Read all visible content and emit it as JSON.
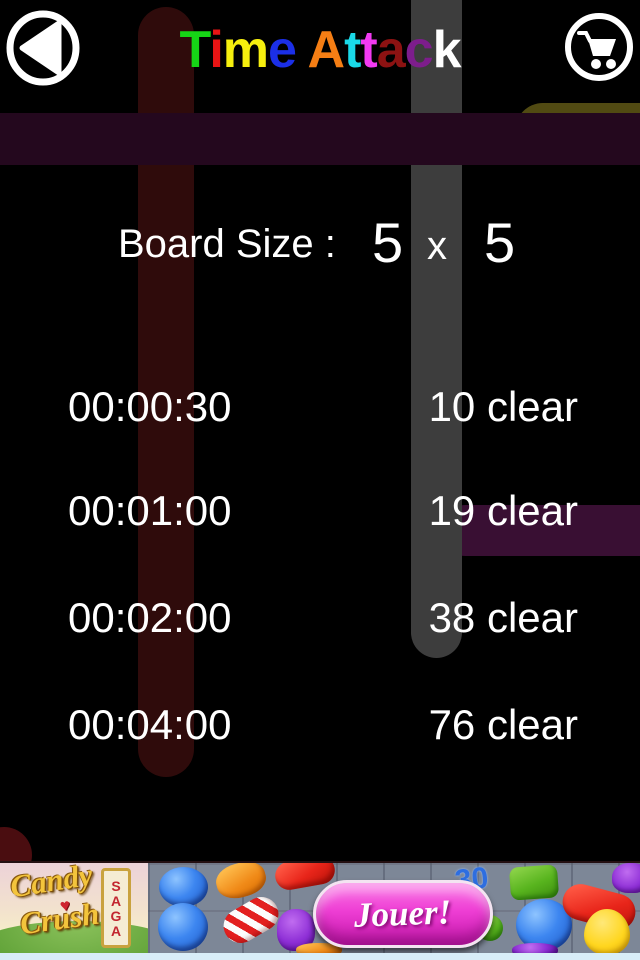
{
  "header": {
    "title": "Time Attack",
    "title_letters": [
      {
        "ch": "T",
        "color": "#16d516"
      },
      {
        "ch": "i",
        "color": "#e81414"
      },
      {
        "ch": "m",
        "color": "#f6ef0e"
      },
      {
        "ch": "e",
        "color": "#1b2fe8"
      },
      {
        "ch": " ",
        "color": "#000000"
      },
      {
        "ch": "A",
        "color": "#f57e14"
      },
      {
        "ch": "t",
        "color": "#1ad9e8"
      },
      {
        "ch": "t",
        "color": "#f23af2"
      },
      {
        "ch": "a",
        "color": "#8c1212"
      },
      {
        "ch": "c",
        "color": "#7d1d8c"
      },
      {
        "ch": "k",
        "color": "#ffffff"
      }
    ],
    "icons": {
      "back": "back-arrow",
      "cart": "shopping-cart"
    }
  },
  "board_size": {
    "label": "Board Size :",
    "columns": "5",
    "separator": "x",
    "rows": "5"
  },
  "levels": [
    {
      "time": "00:00:30",
      "goal": "10 clear"
    },
    {
      "time": "00:01:00",
      "goal": "19 clear"
    },
    {
      "time": "00:02:00",
      "goal": "38 clear"
    },
    {
      "time": "00:04:00",
      "goal": "76 clear"
    }
  ],
  "ad_banner": {
    "brand_top": "Candy",
    "brand_bottom": "Crush",
    "brand_tag": "SAGA",
    "heart_glyph": "♥",
    "board_number": "30",
    "cta_label": "Jouer!",
    "colors": {
      "cta_bg": "#e338cf",
      "board_bg": "#7d8797",
      "strip": "#d8edf8"
    }
  },
  "background": {
    "colors": {
      "red_stripe": "#2f0b0b",
      "gray_stripe": "#3d3d3d",
      "purple_band": "#24081e",
      "purple_pill": "#390f33",
      "olive_shape": "#514a12",
      "maroon_blob": "#4a0d10"
    }
  }
}
